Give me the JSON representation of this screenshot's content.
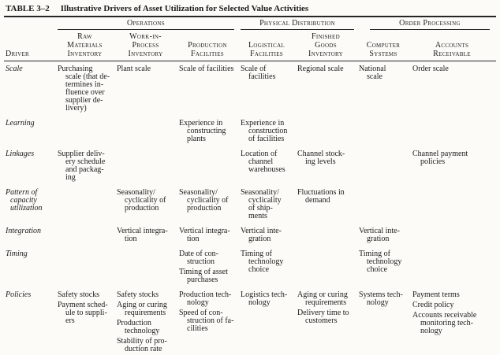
{
  "table": {
    "title_label": "TABLE 3–2",
    "title_text": "Illustrative Drivers of Asset Utilization for Selected Value Activities",
    "driver_header": "Driver",
    "groups": [
      {
        "label": "Operations",
        "span": 3
      },
      {
        "label": "Physical Distribution",
        "span": 2
      },
      {
        "label": "Order Processing",
        "span": 2
      }
    ],
    "columns": [
      "Raw\nMaterials\nInventory",
      "Work-in-\nProcess\nInventory",
      "Production\nFacilities",
      "Logistical\nFacilities",
      "Finished\nGoods\nInventory",
      "Computer\nSystems",
      "Accounts\nReceivable"
    ],
    "rows": [
      {
        "driver": "Scale",
        "cells": [
          [
            "Purchasing\nscale (that de-\ntermines in-\nfluence over\nsupplier de-\nlivery)"
          ],
          [
            "Plant scale"
          ],
          [
            "Scale of facilities"
          ],
          [
            "Scale of\nfacilities"
          ],
          [
            "Regional scale"
          ],
          [
            "National\nscale"
          ],
          [
            "Order scale"
          ]
        ]
      },
      {
        "driver": "Learning",
        "cells": [
          [],
          [],
          [
            "Experience in\nconstructing\nplants"
          ],
          [
            "Experience in\nconstruction\nof facilities"
          ],
          [],
          [],
          []
        ]
      },
      {
        "driver": "Linkages",
        "cells": [
          [
            "Supplier deliv-\nery schedule\nand packag-\ning"
          ],
          [],
          [],
          [
            "Location of\nchannel\nwarehouses"
          ],
          [
            "Channel stock-\ning levels"
          ],
          [],
          [
            "Channel payment\npolicies"
          ]
        ]
      },
      {
        "driver": "Pattern of\ncapacity\nutilization",
        "cells": [
          [],
          [
            "Seasonality/\ncyclicality of\nproduction"
          ],
          [
            "Seasonality/\ncyclicality of\nproduction"
          ],
          [
            "Seasonality/\ncyclicality\nof ship-\nments"
          ],
          [
            "Fluctuations in\ndemand"
          ],
          [],
          []
        ]
      },
      {
        "driver": "Integration",
        "cells": [
          [],
          [
            "Vertical integra-\ntion"
          ],
          [
            "Vertical integra-\ntion"
          ],
          [
            "Vertical inte-\ngration"
          ],
          [],
          [
            "Vertical inte-\ngration"
          ],
          []
        ]
      },
      {
        "driver": "Timing",
        "cells": [
          [],
          [],
          [
            "Date of con-\nstruction",
            "Timing of asset\npurchases"
          ],
          [
            "Timing of\ntechnology\nchoice"
          ],
          [],
          [
            "Timing of\ntechnology\nchoice"
          ],
          []
        ]
      },
      {
        "driver": "Policies",
        "cells": [
          [
            "Safety stocks",
            "Payment sched-\nule to suppli-\ners"
          ],
          [
            "Safety stocks",
            "Aging or curing\nrequirements",
            "Production\ntechnology",
            "Stability of pro-\nduction rate"
          ],
          [
            "Production tech-\nnology",
            "Speed of con-\nstruction of fa-\ncilities"
          ],
          [
            "Logistics tech-\nnology"
          ],
          [
            "Aging or curing\nrequirements",
            "Delivery time to\ncustomers"
          ],
          [
            "Systems tech-\nnology"
          ],
          [
            "Payment terms",
            "Credit policy",
            "Accounts receivable\nmonitoring tech-\nnology"
          ]
        ]
      }
    ]
  }
}
